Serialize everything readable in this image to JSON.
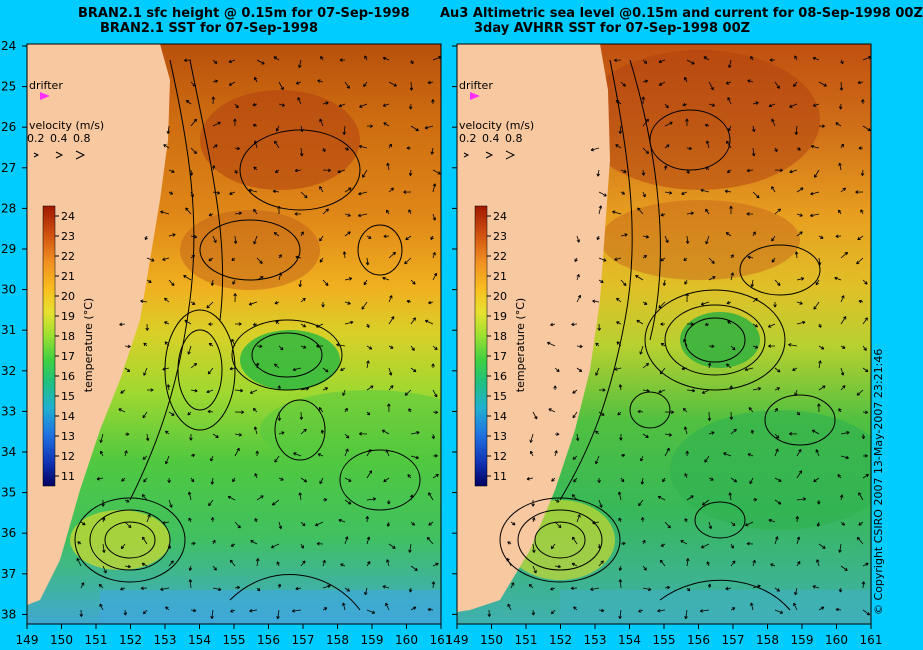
{
  "left_panel": {
    "title_line1": "BRAN2.1 sfc height @ 0.15m for 07-Sep-1998",
    "title_line2": "BRAN2.1 SST for 07-Sep-1998"
  },
  "right_panel": {
    "title_line1": "Au3 Altimetric sea level  @0.15m and current for 08-Sep-1998 00Z",
    "title_line2": "3day AVHRR SST for 07-Sep-1998 00Z"
  },
  "y_ticks": [
    "24",
    "25",
    "26",
    "27",
    "28",
    "29",
    "30",
    "31",
    "32",
    "33",
    "34",
    "35",
    "36",
    "37",
    "38"
  ],
  "x_ticks": [
    "149",
    "150",
    "151",
    "152",
    "153",
    "154",
    "155",
    "156",
    "157",
    "158",
    "159",
    "160",
    "161"
  ],
  "drifter_label": "drifter",
  "velocity_label": "velocity (m/s)",
  "velocity_values": [
    "0.2",
    "0.4",
    "0.8"
  ],
  "colorbar": {
    "label": "temperature (°C)",
    "ticks": [
      "24",
      "23",
      "22",
      "21",
      "20",
      "19",
      "18",
      "17",
      "16",
      "15",
      "14",
      "13",
      "12",
      "11"
    ]
  },
  "copyright": "© Copyright CSIRO 2007   13-May-2007 23:21:46",
  "colors": {
    "background": "#00ccff",
    "land": "#f8c8a0",
    "warm": "#c04010",
    "cool": "#3090e0"
  }
}
